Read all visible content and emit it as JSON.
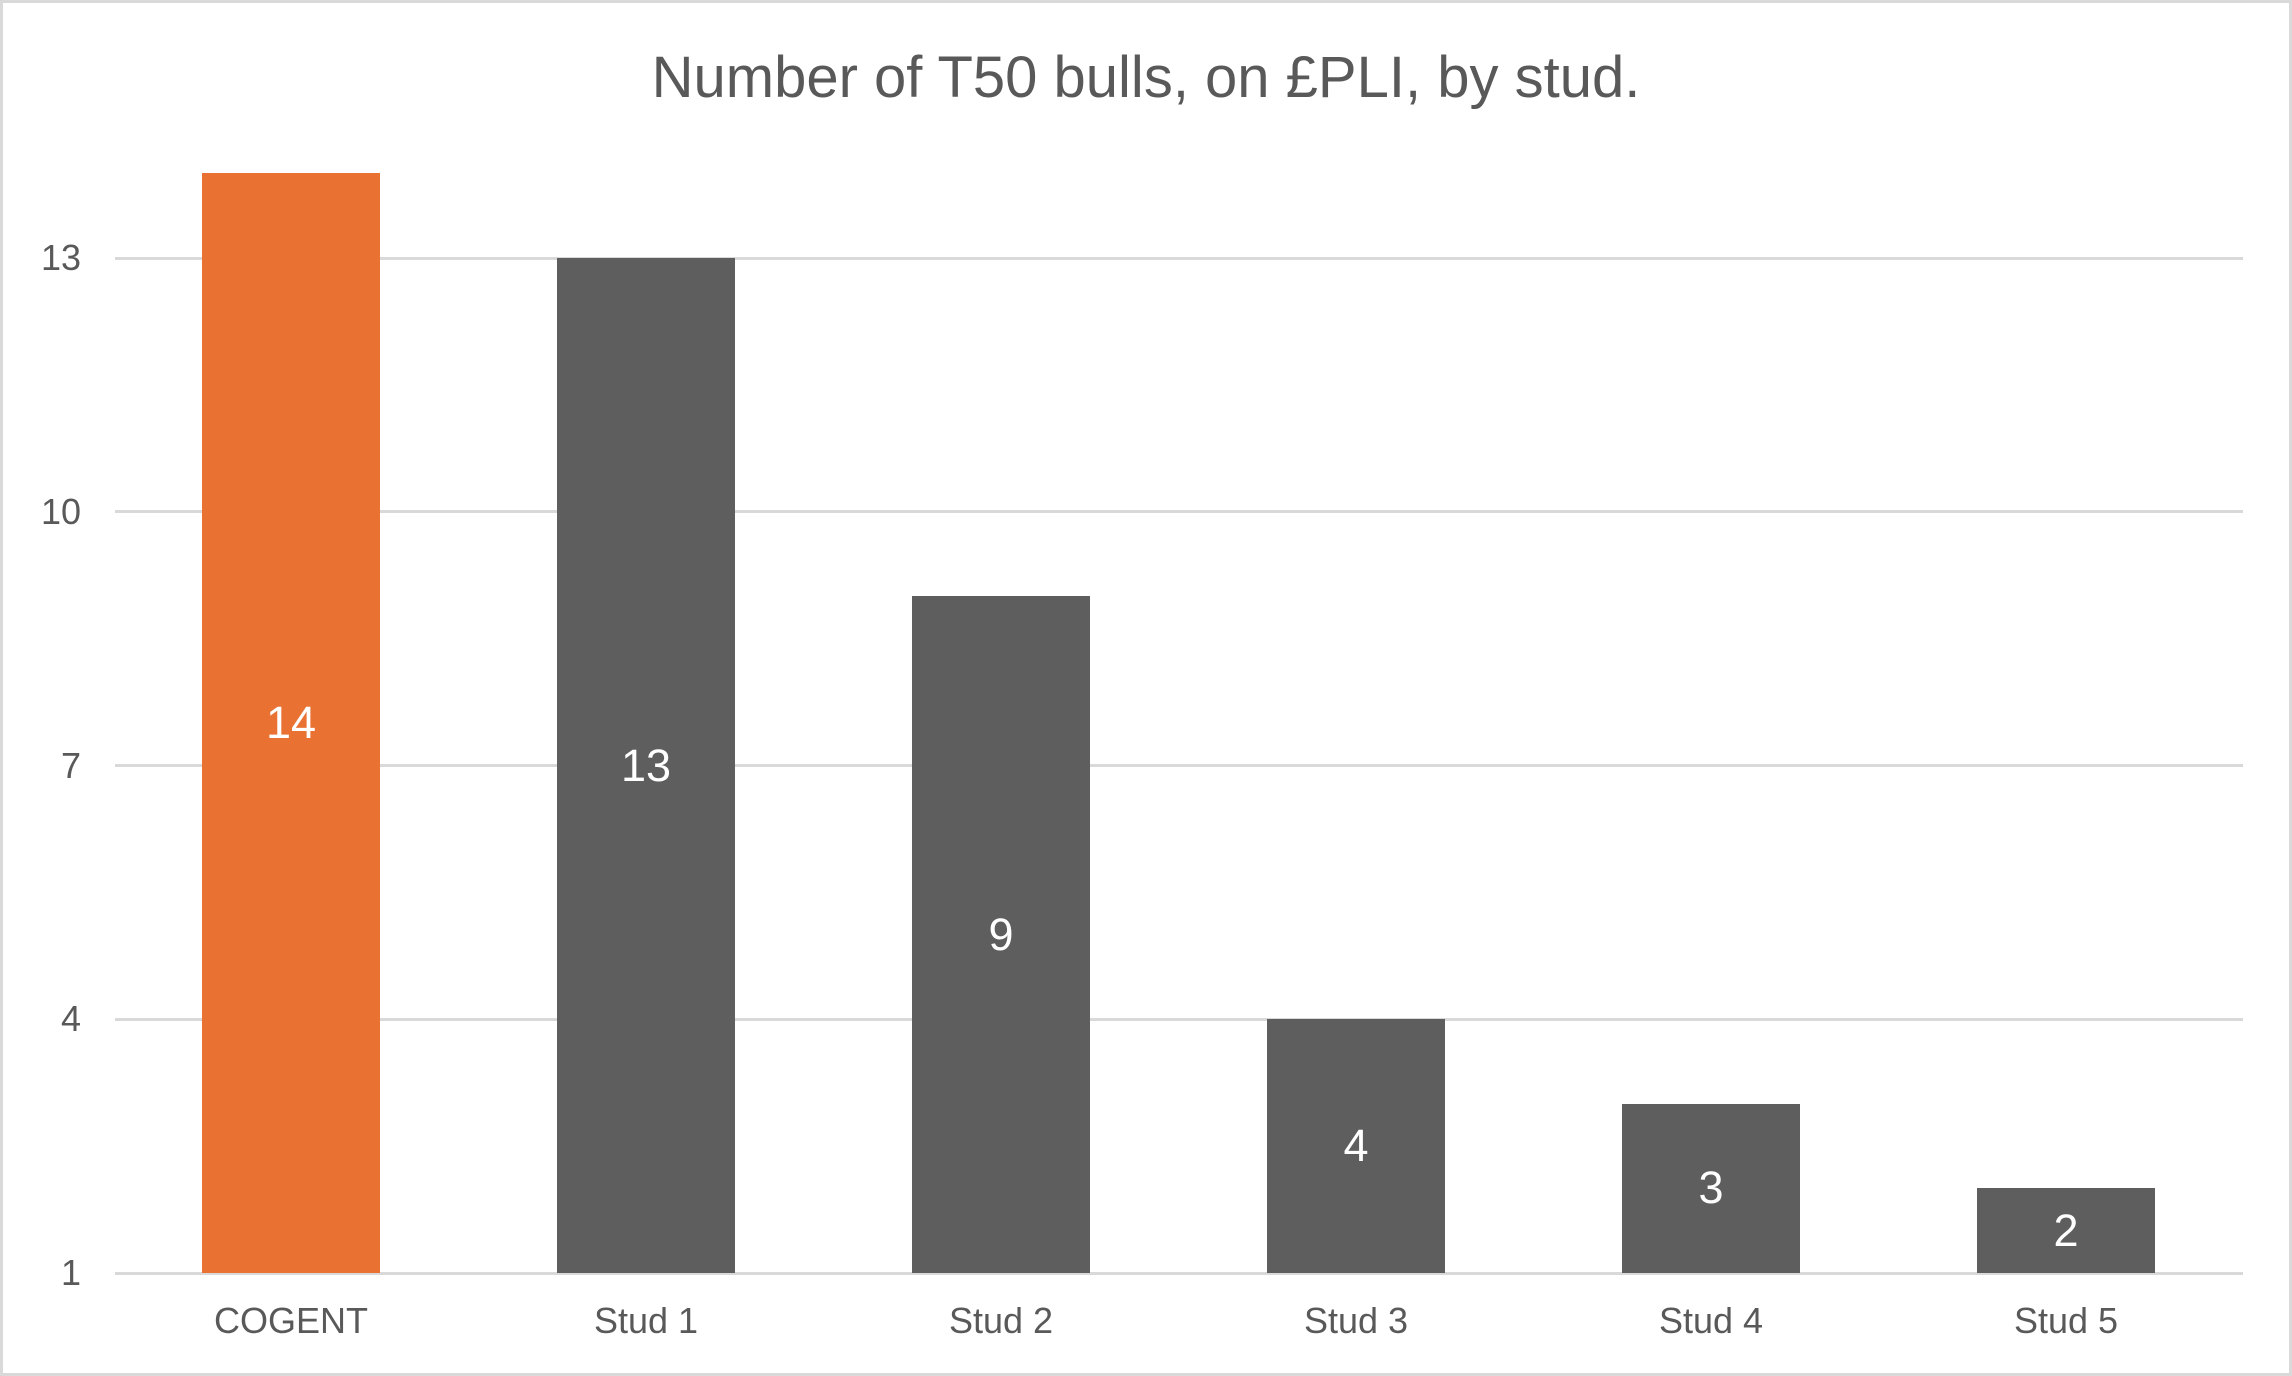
{
  "chart_data": {
    "type": "bar",
    "title": "Number of T50 bulls, on £PLI, by stud.",
    "categories": [
      "COGENT",
      "Stud 1",
      "Stud 2",
      "Stud 3",
      "Stud 4",
      "Stud 5"
    ],
    "values": [
      14,
      13,
      9,
      4,
      3,
      2
    ],
    "data_labels": [
      "14",
      "13",
      "9",
      "4",
      "3",
      "2"
    ],
    "xlabel": "",
    "ylabel": "",
    "yticks": [
      1,
      4,
      7,
      10,
      13
    ],
    "ylim": [
      1,
      14.5
    ],
    "grid": true,
    "legend": "none",
    "bar_colors": [
      "#E97132",
      "#5E5E5E",
      "#5E5E5E",
      "#5E5E5E",
      "#5E5E5E",
      "#5E5E5E"
    ],
    "highlight_color": "#E97132",
    "default_bar_color": "#5E5E5E",
    "data_label_color": "#FFFFFF",
    "text_color": "#595959",
    "gridline_color": "#D9D9D9",
    "frame_border_color": "#D9D9D9",
    "background_color": "#FFFFFF"
  }
}
